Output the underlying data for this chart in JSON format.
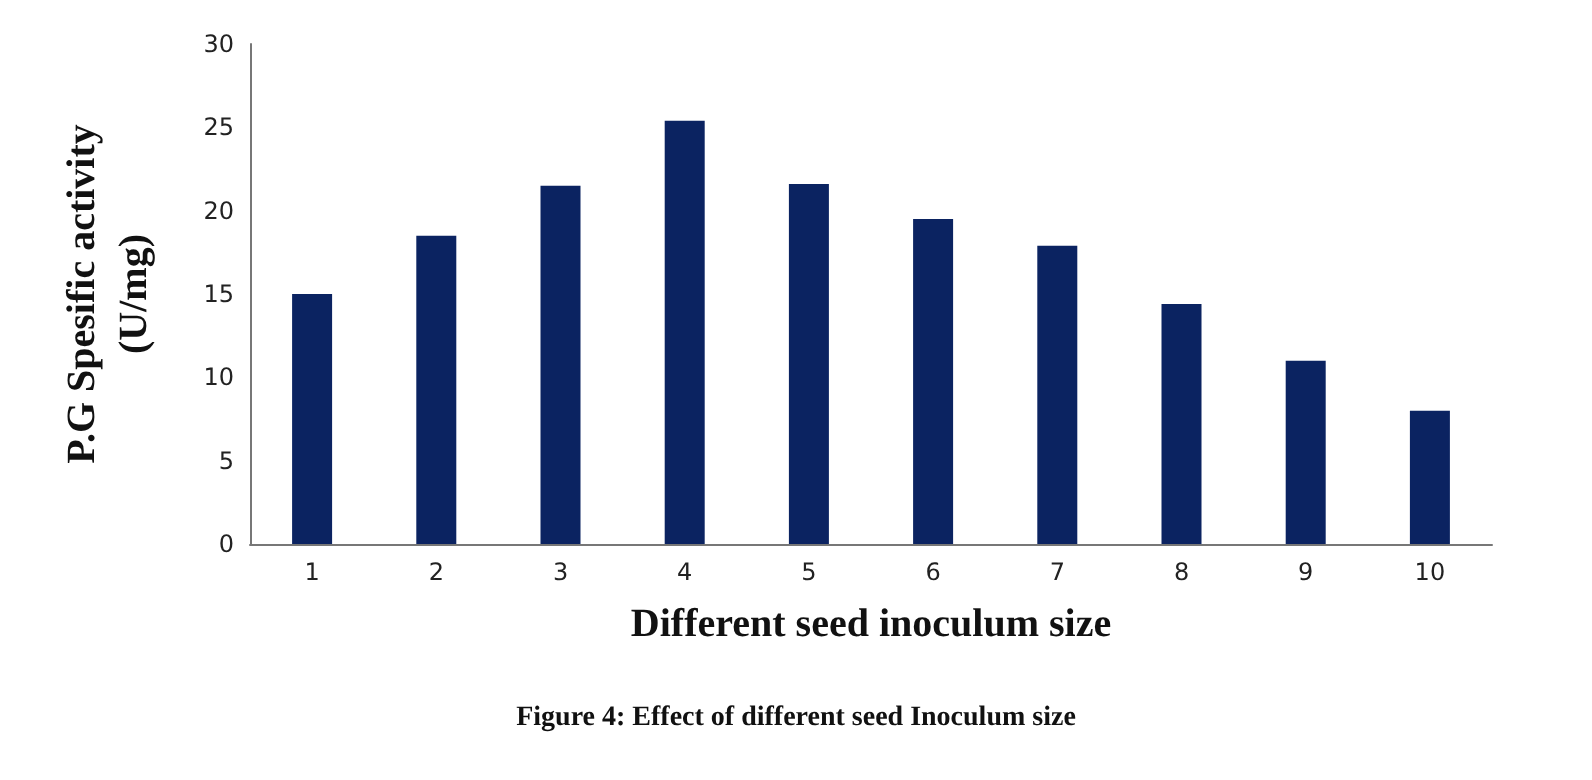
{
  "chart_data": {
    "type": "bar",
    "xlabel": "Different seed inoculum size",
    "ylabel": "P.G Spesific activity\n(U/mg)",
    "annotations": [
      "Figure 4: Effect of different seed Inoculum size"
    ],
    "categories": [
      "1",
      "2",
      "3",
      "4",
      "5",
      "6",
      "7",
      "8",
      "9",
      "10"
    ],
    "values": [
      15.0,
      18.5,
      21.5,
      25.4,
      21.6,
      19.5,
      17.9,
      14.4,
      11.0,
      8.0
    ],
    "color": "#0b2361",
    "ylim": [
      0,
      30
    ],
    "yticks": [
      0,
      5,
      10,
      15,
      20,
      25,
      30
    ],
    "grid": false
  }
}
